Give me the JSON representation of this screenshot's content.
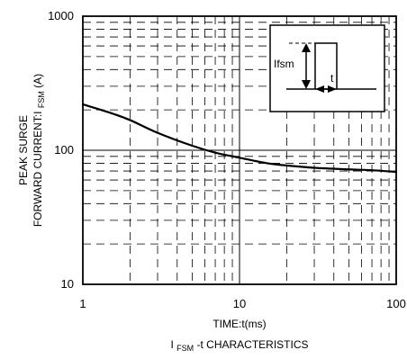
{
  "chart_data": {
    "type": "line",
    "title": "",
    "subtitle": "",
    "caption": {
      "main_prefix": "I",
      "main_sub": "FSM",
      "main_suffix": "-t CHARACTERISTICS"
    },
    "xlabel": "TIME:t(ms)",
    "ylabel": {
      "line1": "PEAK SURGE",
      "line2_prefix": "FORWARD CURRENT:I",
      "line2_sub": "FSM",
      "line2_suffix": "(A)"
    },
    "x_scale": "log",
    "y_scale": "log",
    "xlim": [
      1,
      100
    ],
    "ylim": [
      10,
      1000
    ],
    "x_ticks": [
      {
        "value": 1,
        "label": "1"
      },
      {
        "value": 10,
        "label": "10"
      },
      {
        "value": 100,
        "label": "100"
      }
    ],
    "y_ticks": [
      {
        "value": 10,
        "label": "10"
      },
      {
        "value": 100,
        "label": "100"
      },
      {
        "value": 1000,
        "label": "1000"
      }
    ],
    "grid": {
      "major": "solid",
      "minor": "dashed"
    },
    "series": [
      {
        "x": [
          1,
          1.5,
          2,
          3,
          5,
          7,
          10,
          15,
          20,
          30,
          50,
          70,
          100
        ],
        "y": [
          220,
          190,
          168,
          135,
          108,
          96,
          88,
          80,
          77,
          74,
          72,
          71,
          69
        ]
      }
    ],
    "inset": {
      "label_current": "Ifsm",
      "label_time": "t"
    }
  }
}
